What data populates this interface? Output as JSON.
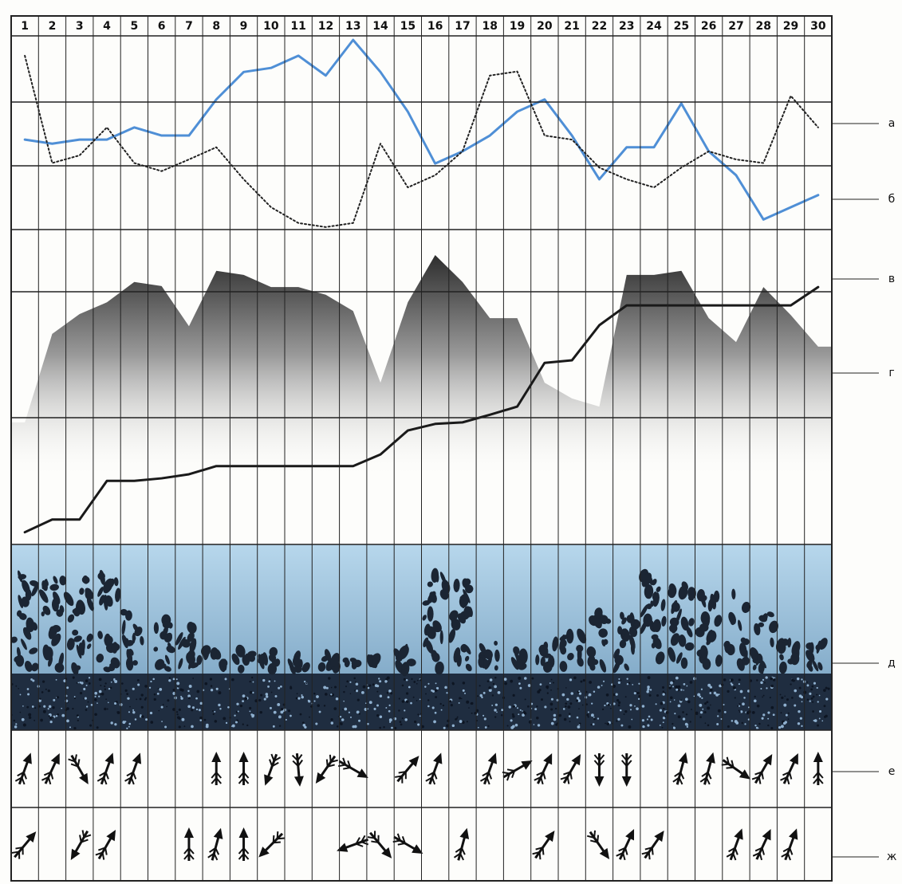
{
  "chart_data": {
    "type": "line",
    "categories": [
      "1",
      "2",
      "3",
      "4",
      "5",
      "6",
      "7",
      "8",
      "9",
      "10",
      "11",
      "12",
      "13",
      "14",
      "15",
      "16",
      "17",
      "18",
      "19",
      "20",
      "21",
      "22",
      "23",
      "24",
      "25",
      "26",
      "27",
      "28",
      "29",
      "30"
    ],
    "ylim": [
      0,
      100
    ],
    "series": [
      {
        "kind": "line",
        "color": "#4f8fd6",
        "style": "solid",
        "values": [
          79.6,
          78.8,
          79.6,
          79.6,
          82.0,
          80.4,
          80.4,
          87.5,
          92.9,
          93.7,
          96.1,
          92.2,
          99.2,
          92.9,
          85.1,
          74.9,
          77.3,
          80.4,
          85.1,
          87.5,
          80.4,
          71.8,
          78.1,
          78.1,
          86.7,
          77.3,
          72.6,
          63.9,
          66.3,
          68.7
        ]
      },
      {
        "kind": "line",
        "color": "#222222",
        "style": "dotted",
        "values": [
          96.1,
          75.0,
          76.5,
          82.0,
          75.0,
          73.4,
          75.7,
          78.1,
          71.8,
          66.3,
          63.2,
          62.4,
          63.2,
          78.8,
          70.2,
          72.6,
          77.3,
          92.2,
          93.0,
          80.4,
          79.6,
          74.1,
          71.8,
          70.2,
          74.1,
          77.3,
          75.7,
          75.0,
          88.2,
          82.0
        ]
      },
      {
        "kind": "area",
        "color": "#3a3a3a",
        "style": "shaded",
        "values": [
          24.0,
          41.4,
          45.3,
          47.6,
          51.6,
          50.8,
          42.9,
          53.8,
          53.0,
          50.6,
          50.6,
          49.1,
          45.9,
          31.8,
          47.6,
          56.9,
          51.6,
          44.5,
          44.5,
          31.8,
          28.7,
          27.1,
          53.0,
          53.0,
          53.8,
          44.5,
          39.8,
          50.6,
          45.1,
          38.9
        ]
      },
      {
        "kind": "line",
        "color": "#1a1a1a",
        "style": "solid",
        "values": [
          2.4,
          4.9,
          4.9,
          12.5,
          12.5,
          13.0,
          13.8,
          15.4,
          15.4,
          15.4,
          15.4,
          15.4,
          15.4,
          17.7,
          22.4,
          23.7,
          24.0,
          25.5,
          27.1,
          35.7,
          36.2,
          43.1,
          47.0,
          47.0,
          47.0,
          47.0,
          47.0,
          47.0,
          47.0,
          50.6
        ]
      }
    ],
    "wind_rows": [
      {
        "directions": [
          20,
          25,
          150,
          20,
          20,
          null,
          null,
          0,
          0,
          200,
          175,
          215,
          120,
          null,
          40,
          20,
          null,
          20,
          60,
          25,
          30,
          180,
          180,
          null,
          15,
          15,
          125,
          30,
          25,
          0
        ]
      },
      {
        "directions": [
          40,
          null,
          210,
          30,
          null,
          null,
          0,
          15,
          0,
          225,
          null,
          null,
          250,
          140,
          120,
          null,
          15,
          null,
          null,
          35,
          null,
          145,
          25,
          35,
          null,
          null,
          20,
          25,
          20,
          null
        ]
      }
    ],
    "row_labels": [
      "а",
      "б",
      "в",
      "г",
      "д",
      "е",
      "ж"
    ]
  }
}
